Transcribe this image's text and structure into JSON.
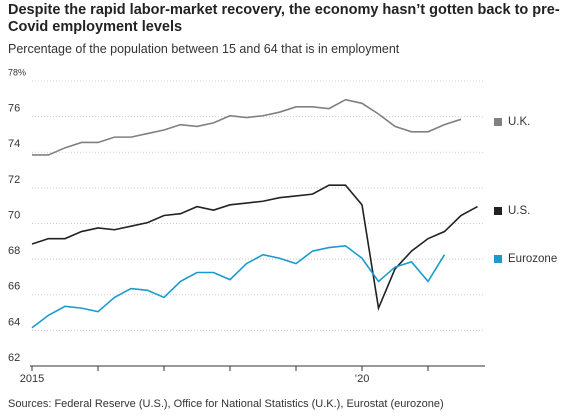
{
  "chart_data": {
    "type": "line",
    "title": "Despite the rapid labor-market recovery, the economy hasn’t gotten back to pre-Covid employment levels",
    "subtitle": "Percentage of the population between 15 and 64 that is in employment",
    "source": "Sources: Federal Reserve (U.S.), Office for National Statistics (U.K.), Eurostat (eurozone)",
    "categories": [
      "2015",
      null,
      null,
      null,
      null,
      null,
      null,
      null,
      null,
      null,
      null,
      null,
      null,
      null,
      null,
      null,
      null,
      null,
      null,
      null,
      "’20",
      null,
      null,
      null,
      null,
      null,
      null,
      null
    ],
    "ylim": [
      62,
      78
    ],
    "yticks": [
      62,
      64,
      66,
      68,
      70,
      72,
      74,
      76,
      {
        "value": 78,
        "label": "78%"
      }
    ],
    "grid": true,
    "legend": "right",
    "series": [
      {
        "name": "U.K.",
        "color": "#808080",
        "values": [
          73.4,
          73.4,
          73.8,
          74.1,
          74.1,
          74.4,
          74.4,
          74.6,
          74.8,
          75.1,
          75.0,
          75.2,
          75.6,
          75.5,
          75.6,
          75.8,
          76.1,
          76.1,
          76.0,
          76.5,
          76.3,
          75.7,
          75.0,
          74.7,
          74.7,
          75.1,
          75.4,
          null
        ]
      },
      {
        "name": "U.S.",
        "color": "#222222",
        "values": [
          68.4,
          68.7,
          68.7,
          69.1,
          69.3,
          69.2,
          69.4,
          69.6,
          70.0,
          70.1,
          70.5,
          70.3,
          70.6,
          70.7,
          70.8,
          71.0,
          71.1,
          71.2,
          71.7,
          71.7,
          70.6,
          64.8,
          67.0,
          68.0,
          68.7,
          69.1,
          70.0,
          70.5
        ]
      },
      {
        "name": "Eurozone",
        "color": "#1a9bcf",
        "values": [
          63.7,
          64.4,
          64.9,
          64.8,
          64.6,
          65.4,
          65.9,
          65.8,
          65.4,
          66.3,
          66.8,
          66.8,
          66.4,
          67.3,
          67.8,
          67.6,
          67.3,
          68.0,
          68.2,
          68.3,
          67.6,
          66.3,
          67.1,
          67.4,
          66.3,
          67.8,
          null,
          null
        ]
      }
    ]
  }
}
